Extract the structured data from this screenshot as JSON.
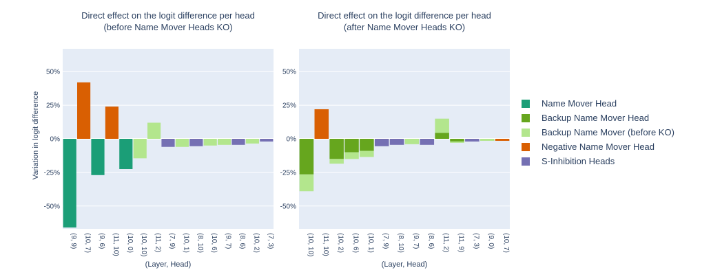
{
  "chart_data": [
    {
      "type": "bar",
      "title": "Direct effect on the logit difference per head",
      "subtitle": "(before Name Mover Heads KO)",
      "xlabel": "(Layer, Head)",
      "ylabel": "Variation in logit difference",
      "ylim": [
        -67,
        67
      ],
      "ytick_values": [
        -50,
        -25,
        0,
        25,
        50
      ],
      "ytick_labels": [
        "-50%",
        "-25%",
        "0%",
        "25%",
        "50%"
      ],
      "grid": true,
      "categories": [
        "(9, 9)",
        "(10, 7)",
        "(9, 6)",
        "(11, 10)",
        "(10, 0)",
        "(10, 10)",
        "(11, 2)",
        "(7, 9)",
        "(10, 1)",
        "(8, 10)",
        "(10, 6)",
        "(9, 7)",
        "(8, 6)",
        "(10, 2)",
        "(7, 3)"
      ],
      "values": [
        -66,
        42,
        -27,
        24,
        -22.5,
        -14.5,
        12,
        -6,
        -6,
        -5.5,
        -5,
        -4.5,
        -4.5,
        -3.5,
        -2
      ],
      "groups": [
        "Name Mover Head",
        "Negative Name Mover Head",
        "Name Mover Head",
        "Negative Name Mover Head",
        "Name Mover Head",
        "Backup Name Mover (before KO)",
        "Backup Name Mover (before KO)",
        "S-Inhibition Heads",
        "Backup Name Mover (before KO)",
        "S-Inhibition Heads",
        "Backup Name Mover (before KO)",
        "Backup Name Mover (before KO)",
        "S-Inhibition Heads",
        "Backup Name Mover (before KO)",
        "S-Inhibition Heads"
      ]
    },
    {
      "type": "bar",
      "title": "Direct effect on the logit difference per head",
      "subtitle": "(after Name Mover Heads KO)",
      "xlabel": "(Layer, Head)",
      "ylabel": "",
      "ylim": [
        -67,
        67
      ],
      "ytick_values": [
        -50,
        -25,
        0,
        25,
        50
      ],
      "ytick_labels": [
        "-50%",
        "-25%",
        "0%",
        "25%",
        "50%"
      ],
      "grid": true,
      "categories": [
        "(10, 10)",
        "(11, 10)",
        "(10, 2)",
        "(10, 6)",
        "(10, 1)",
        "(7, 9)",
        "(8, 10)",
        "(9, 7)",
        "(8, 6)",
        "(11, 2)",
        "(11, 9)",
        "(7, 3)",
        "(9, 0)",
        "(10, 7)"
      ],
      "series": [
        {
          "name": "Backup Name Mover Head",
          "values": [
            -26.5,
            0,
            -15,
            -10,
            -9,
            0,
            0,
            0,
            0,
            4.5,
            -2,
            0,
            0,
            0
          ]
        },
        {
          "name": "Backup Name Mover (before KO)",
          "values": [
            -12.5,
            0,
            -3.5,
            -5,
            -4.5,
            0,
            0,
            -4,
            0,
            10.5,
            -1,
            0,
            -1.5,
            0
          ]
        },
        {
          "name": "Negative Name Mover Head",
          "values": [
            0,
            22,
            0,
            0,
            0,
            0,
            0,
            0,
            0,
            0,
            0,
            0,
            0,
            -1.5
          ]
        },
        {
          "name": "S-Inhibition Heads",
          "values": [
            0,
            0,
            0,
            0,
            0,
            -5.5,
            -4.5,
            0,
            -4.5,
            0,
            0,
            -2,
            0,
            0
          ]
        }
      ]
    }
  ],
  "legend": {
    "placement": "right",
    "items": [
      {
        "label": "Name Mover Head",
        "color": "#1b9e77"
      },
      {
        "label": "Backup Name Mover Head",
        "color": "#66a61e"
      },
      {
        "label": "Backup Name Mover (before KO)",
        "color": "#b3e68d"
      },
      {
        "label": "Negative Name Mover Head",
        "color": "#d95f02"
      },
      {
        "label": "S-Inhibition Heads",
        "color": "#7570b3"
      }
    ]
  },
  "colors": {
    "plot_background": "#e5ecf6",
    "gridline": "#ffffff",
    "text": "#2a3f5f"
  }
}
